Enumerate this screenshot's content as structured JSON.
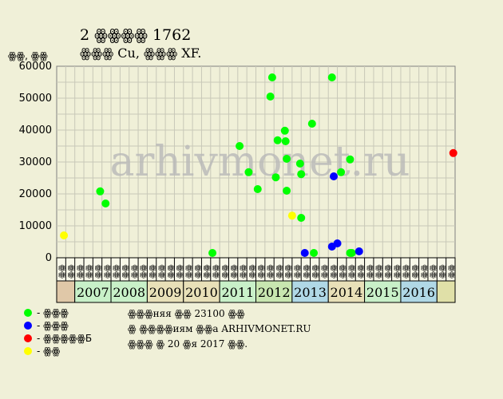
{
  "chart_data": {
    "type": "scatter",
    "title": "2 ꙮꙮꙮꙮ 1762",
    "subtitle": "ꙮꙮꙮ Cu, ꙮꙮꙮ XF.",
    "ylabel": "ꙮꙮ, ꙮꙮ",
    "watermark": "arhivmonet.ru",
    "ylim": [
      0,
      60000
    ],
    "yticks": [
      0,
      10000,
      20000,
      30000,
      40000,
      50000,
      60000
    ],
    "quarter_labels": [
      "ꙮꙮ",
      "ꙮꙮ",
      "ꙮꙮ",
      "ꙮꙮ"
    ],
    "years": [
      "2007",
      "2008",
      "2009",
      "2010",
      "2011",
      "2012",
      "2013",
      "2014",
      "2015",
      "2016"
    ],
    "year_colors": [
      "#c8f0c8",
      "#c8f0c8",
      "#e8e0b8",
      "#e8e0b8",
      "#c8f0c8",
      "#c8e6b0",
      "#b0d8e6",
      "#e8e0b8",
      "#c8f0c8",
      "#b0d8e6"
    ],
    "series": [
      {
        "name": "ꙮꙮꙮ",
        "color": "#00ff00",
        "points": [
          {
            "x": 2007.2,
            "y": 20800
          },
          {
            "x": 2007.35,
            "y": 17000
          },
          {
            "x": 2010.3,
            "y": 1500
          },
          {
            "x": 2011.05,
            "y": 35000
          },
          {
            "x": 2011.3,
            "y": 26800
          },
          {
            "x": 2011.55,
            "y": 21500
          },
          {
            "x": 2011.9,
            "y": 50500
          },
          {
            "x": 2011.95,
            "y": 56500
          },
          {
            "x": 2012.05,
            "y": 25200
          },
          {
            "x": 2012.1,
            "y": 36800
          },
          {
            "x": 2012.3,
            "y": 39800
          },
          {
            "x": 2012.32,
            "y": 36500
          },
          {
            "x": 2012.35,
            "y": 31000
          },
          {
            "x": 2012.35,
            "y": 21000
          },
          {
            "x": 2012.72,
            "y": 29500
          },
          {
            "x": 2012.75,
            "y": 26200
          },
          {
            "x": 2012.75,
            "y": 12500
          },
          {
            "x": 2013.05,
            "y": 42000
          },
          {
            "x": 2013.1,
            "y": 1500
          },
          {
            "x": 2013.6,
            "y": 56500
          },
          {
            "x": 2013.85,
            "y": 26800
          },
          {
            "x": 2014.1,
            "y": 30800
          },
          {
            "x": 2014.1,
            "y": 1500
          },
          {
            "x": 2014.15,
            "y": 1500
          }
        ]
      },
      {
        "name": "ꙮꙮꙮ",
        "color": "#0000ff",
        "points": [
          {
            "x": 2012.85,
            "y": 1500
          },
          {
            "x": 2013.6,
            "y": 3500
          },
          {
            "x": 2013.65,
            "y": 25500
          },
          {
            "x": 2013.75,
            "y": 4500
          },
          {
            "x": 2014.35,
            "y": 2000
          }
        ]
      },
      {
        "name": "ꙮꙮꙮꙮꙮБ",
        "color": "#ff0000",
        "points": [
          {
            "x": 2016.95,
            "y": 32800
          }
        ]
      },
      {
        "name": "ꙮꙮ",
        "color": "#ffff00",
        "points": [
          {
            "x": 2006.2,
            "y": 7000
          },
          {
            "x": 2012.5,
            "y": 13200
          }
        ]
      }
    ],
    "legend": [
      {
        "label": "- ꙮꙮꙮ",
        "color": "#00ff00"
      },
      {
        "label": "- ꙮꙮꙮ",
        "color": "#0000ff"
      },
      {
        "label": "- ꙮꙮꙮꙮꙮБ",
        "color": "#ff0000"
      },
      {
        "label": "- ꙮꙮ",
        "color": "#ffff00"
      }
    ],
    "notes": [
      "ꙮꙮꙮняя ꙮꙮ 23100 ꙮꙮ",
      "ꙮ ꙮꙮꙮꙮиям ꙮꙮа ARHIVMONET.RU",
      "ꙮꙮꙮ ꙮ 20 ꙮя 2017 ꙮꙮ."
    ]
  }
}
